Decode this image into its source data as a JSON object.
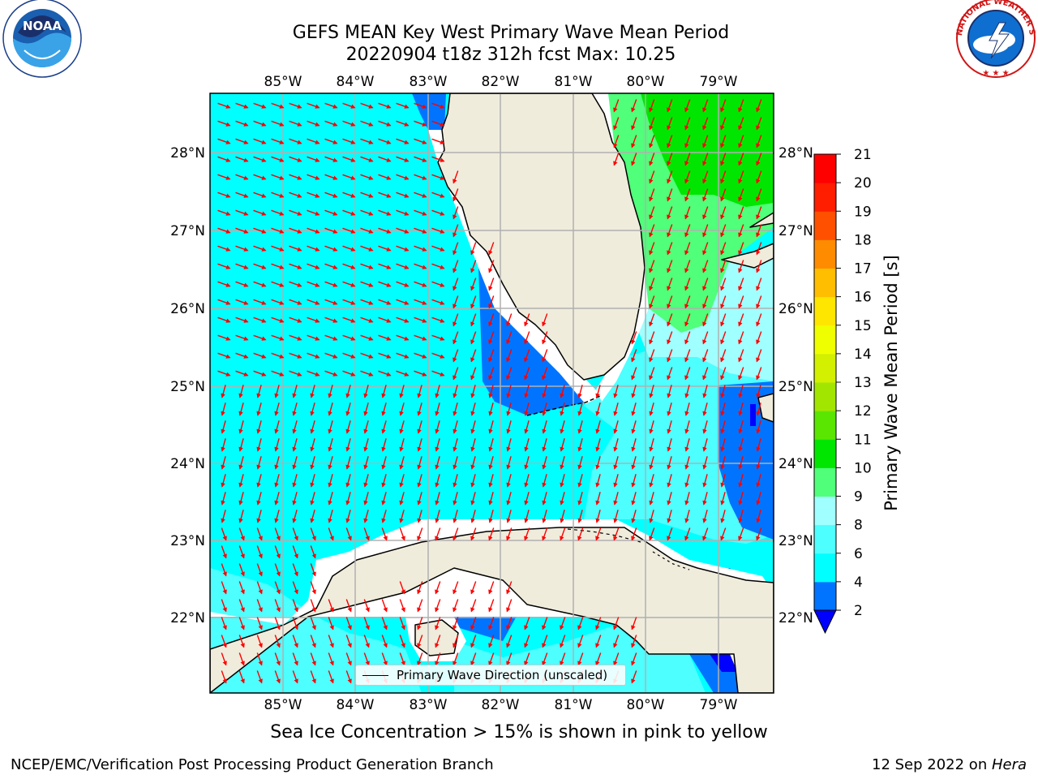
{
  "header": {
    "title_line1": "GEFS MEAN Key West Primary Wave Mean Period",
    "title_line2": "20220904 t18z 312h fcst   Max: 10.25"
  },
  "logos": {
    "left": {
      "text": "NOAA",
      "ring_text": "NATIONAL OCEANIC AND ATMOSPHERIC ADMINISTRATION · U.S. DEPARTMENT OF COMMERCE"
    },
    "right": {
      "ring_text": "NATIONAL WEATHER SERVICE"
    }
  },
  "map": {
    "lon_labels": [
      "85°W",
      "84°W",
      "83°W",
      "82°W",
      "81°W",
      "80°W",
      "79°W"
    ],
    "lat_labels": [
      "28°N",
      "27°N",
      "26°N",
      "25°N",
      "24°N",
      "23°N",
      "22°N"
    ],
    "land_color": "#efecdc",
    "grid": true,
    "legend_text": "Primary Wave Direction (unscaled)",
    "arrow_color": "#ff0000"
  },
  "colorbar": {
    "label": "Primary Wave Mean Period [s]",
    "ticks": [
      "2",
      "4",
      "6",
      "8",
      "9",
      "10",
      "11",
      "12",
      "13",
      "14",
      "15",
      "16",
      "17",
      "18",
      "19",
      "20",
      "21"
    ],
    "colors": [
      "#0000ff",
      "#0074ff",
      "#00ffff",
      "#4dffff",
      "#a0ffff",
      "#50ff7a",
      "#00e600",
      "#5ae600",
      "#a2e600",
      "#d2f000",
      "#f0ff00",
      "#ffe600",
      "#ffbe00",
      "#ff8c00",
      "#ff5000",
      "#ff1e00",
      "#ff0000"
    ]
  },
  "footer": {
    "sea_ice_note": "Sea Ice Concentration > 15% is shown in pink to yellow",
    "left": "NCEP/EMC/Verification Post Processing Product Generation Branch",
    "right_prefix": "12 Sep 2022 on ",
    "right_host": "Hera"
  }
}
